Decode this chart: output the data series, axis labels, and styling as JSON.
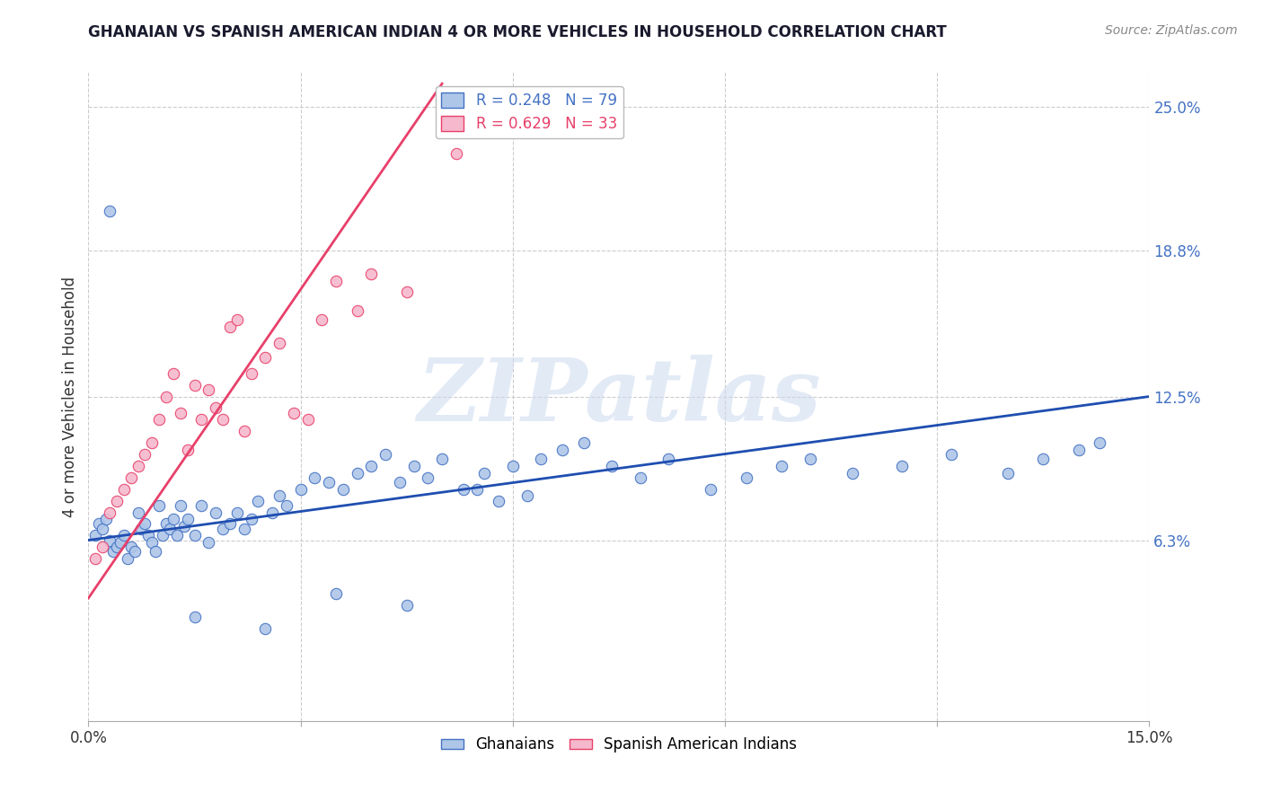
{
  "title": "GHANAIAN VS SPANISH AMERICAN INDIAN 4 OR MORE VEHICLES IN HOUSEHOLD CORRELATION CHART",
  "source": "Source: ZipAtlas.com",
  "ylabel_label": "4 or more Vehicles in Household",
  "xlim": [
    0.0,
    15.0
  ],
  "ylim_min": -1.5,
  "ylim_max": 26.5,
  "ytick_vals": [
    6.3,
    12.5,
    18.8,
    25.0
  ],
  "legend1_label": "R = 0.248   N = 79",
  "legend2_label": "R = 0.629   N = 33",
  "legend_label1": "Ghanaians",
  "legend_label2": "Spanish American Indians",
  "blue_fill": "#aec6e8",
  "pink_fill": "#f5b8cc",
  "blue_edge": "#4472c4",
  "pink_edge": "#e8406a",
  "blue_line": "#1f4eb0",
  "pink_line": "#e8406a",
  "watermark_color": "#d0dcf0",
  "watermark": "ZIPatlas",
  "title_color": "#1a1a2e",
  "source_color": "#888888",
  "grid_color": "#cccccc",
  "right_axis_color": "#4472c4",
  "blue_trend_x0": 0.0,
  "blue_trend_y0": 6.3,
  "blue_trend_x1": 15.0,
  "blue_trend_y1": 12.5,
  "pink_trend_x0": 0.0,
  "pink_trend_y0": 3.8,
  "pink_trend_x1": 5.0,
  "pink_trend_y1": 26.0,
  "ghanaian_x": [
    0.1,
    0.15,
    0.2,
    0.25,
    0.3,
    0.35,
    0.4,
    0.45,
    0.5,
    0.55,
    0.6,
    0.65,
    0.7,
    0.75,
    0.8,
    0.85,
    0.9,
    0.95,
    1.0,
    1.05,
    1.1,
    1.15,
    1.2,
    1.25,
    1.3,
    1.35,
    1.4,
    1.5,
    1.6,
    1.7,
    1.8,
    1.9,
    2.0,
    2.1,
    2.2,
    2.3,
    2.4,
    2.6,
    2.7,
    2.8,
    3.0,
    3.2,
    3.4,
    3.6,
    3.8,
    4.0,
    4.2,
    4.4,
    4.6,
    4.8,
    5.0,
    5.3,
    5.6,
    5.8,
    6.0,
    6.4,
    6.7,
    7.0,
    7.4,
    7.8,
    8.2,
    8.8,
    9.3,
    9.8,
    10.2,
    10.8,
    11.5,
    12.2,
    13.0,
    13.5,
    14.0,
    14.3,
    5.5,
    6.2,
    4.5,
    3.5,
    2.5,
    1.5,
    0.3
  ],
  "ghanaian_y": [
    6.5,
    7.0,
    6.8,
    7.2,
    6.3,
    5.8,
    6.0,
    6.2,
    6.5,
    5.5,
    6.0,
    5.8,
    7.5,
    6.8,
    7.0,
    6.5,
    6.2,
    5.8,
    7.8,
    6.5,
    7.0,
    6.8,
    7.2,
    6.5,
    7.8,
    6.9,
    7.2,
    6.5,
    7.8,
    6.2,
    7.5,
    6.8,
    7.0,
    7.5,
    6.8,
    7.2,
    8.0,
    7.5,
    8.2,
    7.8,
    8.5,
    9.0,
    8.8,
    8.5,
    9.2,
    9.5,
    10.0,
    8.8,
    9.5,
    9.0,
    9.8,
    8.5,
    9.2,
    8.0,
    9.5,
    9.8,
    10.2,
    10.5,
    9.5,
    9.0,
    9.8,
    8.5,
    9.0,
    9.5,
    9.8,
    9.2,
    9.5,
    10.0,
    9.2,
    9.8,
    10.2,
    10.5,
    8.5,
    8.2,
    3.5,
    4.0,
    2.5,
    3.0,
    20.5
  ],
  "spanish_x": [
    0.1,
    0.2,
    0.3,
    0.4,
    0.5,
    0.6,
    0.7,
    0.8,
    0.9,
    1.0,
    1.1,
    1.2,
    1.3,
    1.4,
    1.5,
    1.6,
    1.7,
    1.8,
    1.9,
    2.0,
    2.1,
    2.2,
    2.3,
    2.5,
    2.7,
    2.9,
    3.1,
    3.3,
    3.5,
    3.8,
    4.0,
    4.5,
    5.2
  ],
  "spanish_y": [
    5.5,
    6.0,
    7.5,
    8.0,
    8.5,
    9.0,
    9.5,
    10.0,
    10.5,
    11.5,
    12.5,
    13.5,
    11.8,
    10.2,
    13.0,
    11.5,
    12.8,
    12.0,
    11.5,
    15.5,
    15.8,
    11.0,
    13.5,
    14.2,
    14.8,
    11.8,
    11.5,
    15.8,
    17.5,
    16.2,
    17.8,
    17.0,
    23.0
  ]
}
